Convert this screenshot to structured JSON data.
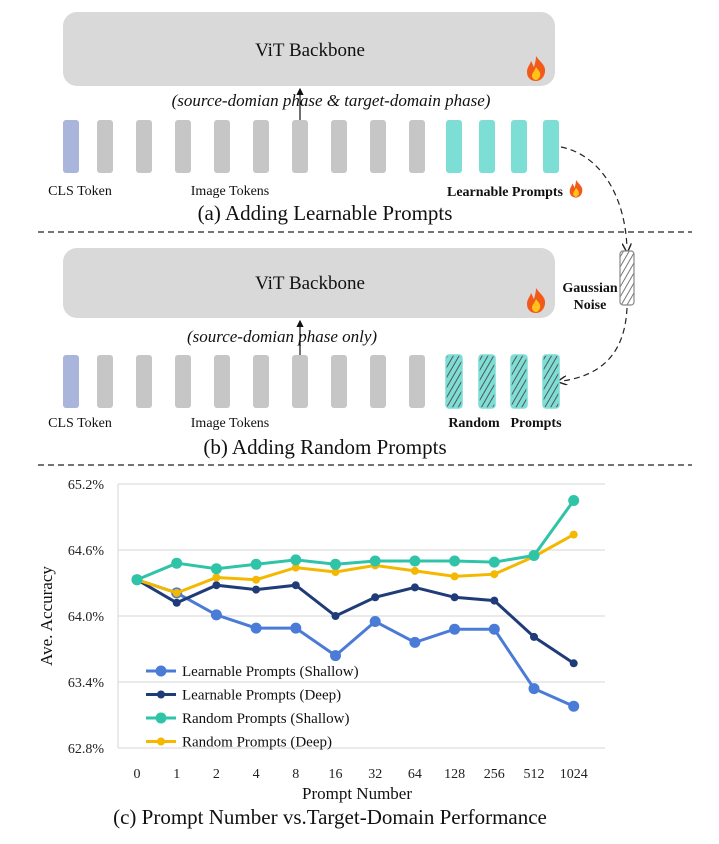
{
  "panel_a": {
    "backbone_label": "ViT Backbone",
    "phase_label": "(source-domian phase & target-domain phase)",
    "cls_label": "CLS Token",
    "image_tokens_label": "Image Tokens",
    "prompts_label": "Learnable Prompts",
    "caption": "(a) Adding Learnable Prompts"
  },
  "panel_b": {
    "backbone_label": "ViT Backbone",
    "phase_label": "(source-domian phase only)",
    "cls_label": "CLS Token",
    "image_tokens_label": "Image Tokens",
    "prompts_label_1": "Random",
    "prompts_label_2": "Prompts",
    "noise_label_1": "Gaussian",
    "noise_label_2": "Noise",
    "caption": "(b) Adding Random Prompts"
  },
  "icons": {
    "flame": "fire-icon"
  },
  "colors": {
    "cls_token": "#aab5dc",
    "image_token": "#c6c6c6",
    "prompt_token": "#7dded5",
    "prompt_text": "#72d8cf",
    "random_text": "#2aa596",
    "backbone": "#d9d9d9"
  },
  "chart_data": {
    "type": "line",
    "caption": "(c) Prompt Number vs.Target-Domain Performance",
    "xlabel": "Prompt Number",
    "ylabel": "Ave. Accuracy",
    "categories": [
      "0",
      "1",
      "2",
      "4",
      "8",
      "16",
      "32",
      "64",
      "128",
      "256",
      "512",
      "1024"
    ],
    "ylim": [
      62.8,
      65.2
    ],
    "yticks": [
      "62.8%",
      "63.4%",
      "64.0%",
      "64.6%",
      "65.2%"
    ],
    "grid": true,
    "legend": "bottom-left",
    "series": [
      {
        "name": "Learnable Prompts (Shallow)",
        "color": "#4a7bd6",
        "values": [
          64.33,
          64.21,
          64.01,
          63.89,
          63.89,
          63.64,
          63.95,
          63.76,
          63.88,
          63.88,
          63.34,
          63.18
        ]
      },
      {
        "name": "Learnable Prompts (Deep)",
        "color": "#1f3c78",
        "values": [
          64.33,
          64.12,
          64.28,
          64.24,
          64.28,
          64.0,
          64.17,
          64.26,
          64.17,
          64.14,
          63.81,
          63.57
        ]
      },
      {
        "name": "Random Prompts (Shallow)",
        "color": "#2fc4a8",
        "values": [
          64.33,
          64.48,
          64.43,
          64.47,
          64.51,
          64.47,
          64.5,
          64.5,
          64.5,
          64.49,
          64.55,
          65.05
        ]
      },
      {
        "name": "Random Prompts (Deep)",
        "color": "#f4b800",
        "values": [
          64.33,
          64.21,
          64.35,
          64.33,
          64.44,
          64.4,
          64.46,
          64.41,
          64.36,
          64.38,
          64.54,
          64.74
        ]
      }
    ]
  }
}
